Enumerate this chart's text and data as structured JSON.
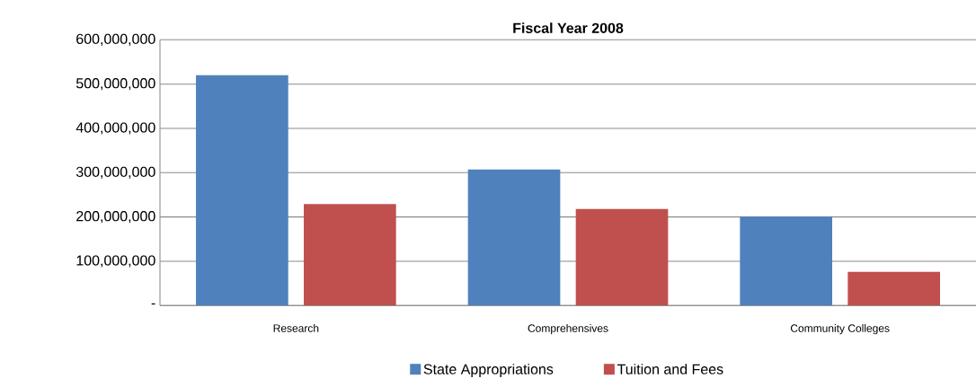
{
  "chart_data": {
    "type": "bar",
    "title": "Fiscal Year 2008",
    "categories": [
      "Research",
      "Comprehensives",
      "Community Colleges"
    ],
    "series": [
      {
        "name": "State Appropriations",
        "color": "#4f81bd",
        "values": [
          520000000,
          307000000,
          201000000
        ]
      },
      {
        "name": "Tuition and Fees",
        "color": "#c0504d",
        "values": [
          229000000,
          218000000,
          76000000
        ]
      }
    ],
    "ylim": [
      0,
      600000000
    ],
    "yticks": [
      {
        "value": 0,
        "label": "-"
      },
      {
        "value": 100000000,
        "label": "100,000,000"
      },
      {
        "value": 200000000,
        "label": "200,000,000"
      },
      {
        "value": 300000000,
        "label": "300,000,000"
      },
      {
        "value": 400000000,
        "label": "400,000,000"
      },
      {
        "value": 500000000,
        "label": "500,000,000"
      },
      {
        "value": 600000000,
        "label": "600,000,000"
      }
    ],
    "grid": "y",
    "legend": "bottom"
  }
}
